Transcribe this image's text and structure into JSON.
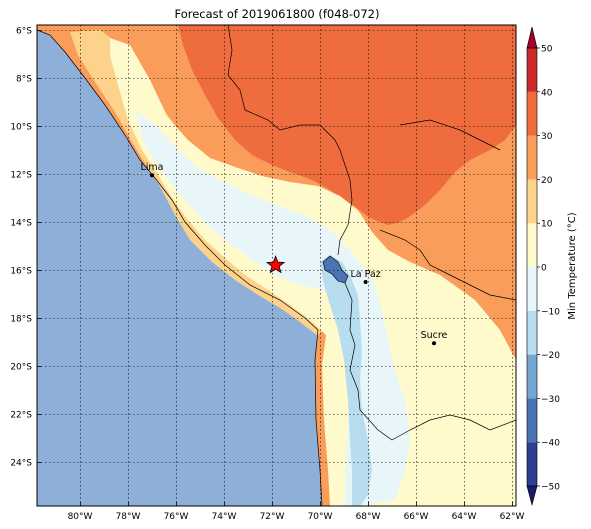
{
  "title": "Forecast of 2019061800 (f048-072)",
  "lat_ticks": [
    "6°S",
    "8°S",
    "10°S",
    "12°S",
    "14°S",
    "16°S",
    "18°S",
    "20°S",
    "22°S",
    "24°S"
  ],
  "lon_ticks": [
    "80°W",
    "78°W",
    "76°W",
    "74°W",
    "72°W",
    "70°W",
    "68°W",
    "66°W",
    "64°W",
    "62°W"
  ],
  "cities": [
    {
      "name": "Lima",
      "lon": -77.0,
      "lat": -12.05
    },
    {
      "name": "La Paz",
      "lon": -68.1,
      "lat": -16.5
    },
    {
      "name": "Sucre",
      "lon": -65.25,
      "lat": -19.05
    }
  ],
  "marker": {
    "lon": -71.85,
    "lat": -15.8,
    "symbol": "star",
    "color": "#ff0000"
  },
  "extent": {
    "lon": [
      -81.8,
      -61.8
    ],
    "lat": [
      -25.8,
      -5.8
    ]
  },
  "colorbar": {
    "label": "Min Temperature (°C)",
    "tick_labels": [
      "50",
      "40",
      "30",
      "20",
      "10",
      "0",
      "−10",
      "−20",
      "−30",
      "−40",
      "−50"
    ],
    "levels": [
      -50,
      -40,
      -30,
      -20,
      -10,
      0,
      10,
      20,
      30,
      40,
      50
    ],
    "colors": [
      "#2c3f92",
      "#4a74b4",
      "#74a7cf",
      "#b7ddee",
      "#e8f6f9",
      "#fffacc",
      "#fdd38b",
      "#fb9d5a",
      "#ef6c3f",
      "#cc2a28"
    ],
    "under_color": "#1a1a6e",
    "over_color": "#a50026"
  }
}
